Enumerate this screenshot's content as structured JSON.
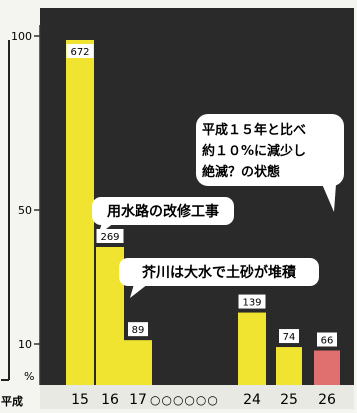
{
  "chart_data": {
    "type": "bar",
    "title": "",
    "xlabel": "平成",
    "ylabel": "%",
    "ylim": [
      0,
      100
    ],
    "y_axis_scale": "broken",
    "y_ticks": [
      "100",
      "50",
      "10"
    ],
    "categories": [
      "15",
      "16",
      "17",
      "24",
      "25",
      "26"
    ],
    "values": [
      672,
      269,
      89,
      139,
      74,
      66
    ],
    "percent_values": [
      100,
      40,
      13,
      21,
      11,
      10
    ],
    "data_labels": [
      "672",
      "269",
      "89",
      "139",
      "74",
      "66"
    ],
    "gap_label": "○○○○○○",
    "bar_colors": [
      "#f0e430",
      "#f0e430",
      "#f0e430",
      "#f0e430",
      "#f0e430",
      "#e07070"
    ],
    "plot_background": "#2a2a2a",
    "grid": false,
    "annotations": [
      {
        "id": "kaishu",
        "text": "用水路の改修工事"
      },
      {
        "id": "akutagawa",
        "text": "芥川は大水で土砂が堆積"
      },
      {
        "id": "zetsumetsu",
        "lines": [
          "平成１５年と比べ",
          "約１０%に減少し",
          "絶滅？の状態"
        ]
      }
    ]
  }
}
